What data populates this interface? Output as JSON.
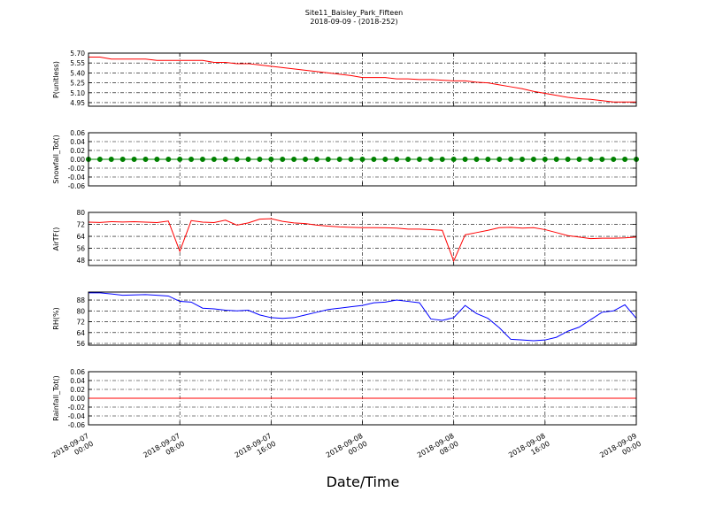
{
  "title": "Site11_Baisley_Park_Fifteen",
  "subtitle": "2018-09-09 - (2018-252)",
  "xlabel": "Date/Time",
  "xlim": [
    "2018-09-07 00:00",
    "2018-09-09 00:00"
  ],
  "xticks": [
    {
      "value": "2018-09-07 00:00",
      "label": [
        "2018-09-07",
        "00:00"
      ]
    },
    {
      "value": "2018-09-07 08:00",
      "label": [
        "2018-09-07",
        "08:00"
      ]
    },
    {
      "value": "2018-09-07 16:00",
      "label": [
        "2018-09-07",
        "16:00"
      ]
    },
    {
      "value": "2018-09-08 00:00",
      "label": [
        "2018-09-08",
        "00:00"
      ]
    },
    {
      "value": "2018-09-08 08:00",
      "label": [
        "2018-09-08",
        "08:00"
      ]
    },
    {
      "value": "2018-09-08 16:00",
      "label": [
        "2018-09-08",
        "16:00"
      ]
    },
    {
      "value": "2018-09-09 00:00",
      "label": [
        "2018-09-09",
        "00:00"
      ]
    }
  ],
  "x": [
    "2018-09-07 00:00",
    "2018-09-07 01:00",
    "2018-09-07 02:00",
    "2018-09-07 03:00",
    "2018-09-07 04:00",
    "2018-09-07 05:00",
    "2018-09-07 06:00",
    "2018-09-07 07:00",
    "2018-09-07 08:00",
    "2018-09-07 09:00",
    "2018-09-07 10:00",
    "2018-09-07 11:00",
    "2018-09-07 12:00",
    "2018-09-07 13:00",
    "2018-09-07 14:00",
    "2018-09-07 15:00",
    "2018-09-07 16:00",
    "2018-09-07 17:00",
    "2018-09-07 18:00",
    "2018-09-07 19:00",
    "2018-09-07 20:00",
    "2018-09-07 21:00",
    "2018-09-07 22:00",
    "2018-09-07 23:00",
    "2018-09-08 00:00",
    "2018-09-08 01:00",
    "2018-09-08 02:00",
    "2018-09-08 03:00",
    "2018-09-08 04:00",
    "2018-09-08 05:00",
    "2018-09-08 06:00",
    "2018-09-08 07:00",
    "2018-09-08 08:00",
    "2018-09-08 09:00",
    "2018-09-08 10:00",
    "2018-09-08 11:00",
    "2018-09-08 12:00",
    "2018-09-08 13:00",
    "2018-09-08 14:00",
    "2018-09-08 15:00",
    "2018-09-08 16:00",
    "2018-09-08 17:00",
    "2018-09-08 18:00",
    "2018-09-08 19:00",
    "2018-09-08 20:00",
    "2018-09-08 21:00",
    "2018-09-08 22:00",
    "2018-09-08 23:00",
    "2018-09-09 00:00"
  ],
  "chart_data": [
    {
      "type": "line",
      "ylabel": "P(unitless)",
      "ylim": [
        4.896,
        5.7
      ],
      "grid": true,
      "yticks": [
        {
          "value": 4.95,
          "label": "4.95"
        },
        {
          "value": 5.1,
          "label": "5.10"
        },
        5.25,
        {
          "value": 5.4,
          "label": "5.40"
        },
        5.55,
        {
          "value": 5.7,
          "label": "5.70"
        }
      ],
      "series": [
        {
          "color": "#ff0000",
          "marker": false,
          "values": [
            5.64,
            5.64,
            5.61,
            5.61,
            5.61,
            5.61,
            5.59,
            5.59,
            5.59,
            5.59,
            5.59,
            5.56,
            5.56,
            5.54,
            5.54,
            5.52,
            5.5,
            5.48,
            5.46,
            5.44,
            5.42,
            5.4,
            5.38,
            5.36,
            5.33,
            5.33,
            5.33,
            5.31,
            5.31,
            5.3,
            5.3,
            5.29,
            5.28,
            5.28,
            5.26,
            5.25,
            5.22,
            5.19,
            5.16,
            5.12,
            5.09,
            5.06,
            5.03,
            5.01,
            5.0,
            4.98,
            4.96,
            4.96,
            4.96
          ]
        }
      ]
    },
    {
      "type": "line",
      "ylabel": "Snowfall_Tot()",
      "ylim": [
        -0.06,
        0.06
      ],
      "grid": true,
      "yticks": [
        -0.06,
        -0.04,
        -0.02,
        {
          "value": 0,
          "label": "0.00"
        },
        0.02,
        0.04,
        0.06
      ],
      "series": [
        {
          "color": "#008000",
          "marker": true,
          "values": [
            0,
            0,
            0,
            0,
            0,
            0,
            0,
            0,
            0,
            0,
            0,
            0,
            0,
            0,
            0,
            0,
            0,
            0,
            0,
            0,
            0,
            0,
            0,
            0,
            0,
            0,
            0,
            0,
            0,
            0,
            0,
            0,
            0,
            0,
            0,
            0,
            0,
            0,
            0,
            0,
            0,
            0,
            0,
            0,
            0,
            0,
            0,
            0,
            0
          ]
        }
      ]
    },
    {
      "type": "line",
      "ylabel": "AirTF()",
      "ylim": [
        44.5,
        80
      ],
      "grid": true,
      "yticks": [
        48,
        56,
        64,
        72,
        80
      ],
      "series": [
        {
          "color": "#ff0000",
          "marker": false,
          "values": [
            73.5,
            73.3,
            73.8,
            73.6,
            73.8,
            73.5,
            73.2,
            74.2,
            54,
            74.5,
            73.5,
            73.2,
            74.8,
            71.5,
            73,
            75.5,
            75.8,
            74,
            73,
            72.5,
            71.5,
            70.8,
            70.3,
            70,
            69.8,
            69.8,
            69.7,
            69.5,
            68.8,
            68.8,
            68.5,
            68,
            47.5,
            65,
            66.5,
            68,
            69.8,
            70,
            69.5,
            69.8,
            68.5,
            66.5,
            64.5,
            63.5,
            62.5,
            62.8,
            62.8,
            63,
            63.5
          ]
        }
      ]
    },
    {
      "type": "line",
      "ylabel": "RH(%)",
      "ylim": [
        54.7,
        93.9
      ],
      "grid": true,
      "yticks": [
        56,
        64,
        72,
        80,
        88
      ],
      "series": [
        {
          "color": "#0000ff",
          "marker": false,
          "values": [
            93.3,
            93.3,
            92.5,
            91.5,
            91.8,
            92,
            91.5,
            91,
            87,
            86.5,
            82,
            81.5,
            80.5,
            80,
            80.5,
            77,
            75,
            74.5,
            75,
            77,
            79,
            81,
            82,
            83,
            84,
            86,
            86.5,
            88,
            87,
            86,
            74,
            73,
            75,
            84,
            78,
            74.5,
            67.5,
            59,
            58.5,
            58,
            58.5,
            60.5,
            65,
            68,
            73.5,
            79,
            80,
            84.5,
            74.5
          ]
        }
      ]
    },
    {
      "type": "line",
      "ylabel": "Rainfall_Tot()",
      "ylim": [
        -0.06,
        0.06
      ],
      "grid": true,
      "yticks": [
        -0.06,
        -0.04,
        -0.02,
        {
          "value": 0,
          "label": "0.00"
        },
        0.02,
        0.04,
        0.06
      ],
      "series": [
        {
          "color": "#ff0000",
          "marker": false,
          "values": [
            0,
            0,
            0,
            0,
            0,
            0,
            0,
            0,
            0,
            0,
            0,
            0,
            0,
            0,
            0,
            0,
            0,
            0,
            0,
            0,
            0,
            0,
            0,
            0,
            0,
            0,
            0,
            0,
            0,
            0,
            0,
            0,
            0,
            0,
            0,
            0,
            0,
            0,
            0,
            0,
            0,
            0,
            0,
            0,
            0,
            0,
            0,
            0,
            0
          ]
        }
      ]
    }
  ]
}
